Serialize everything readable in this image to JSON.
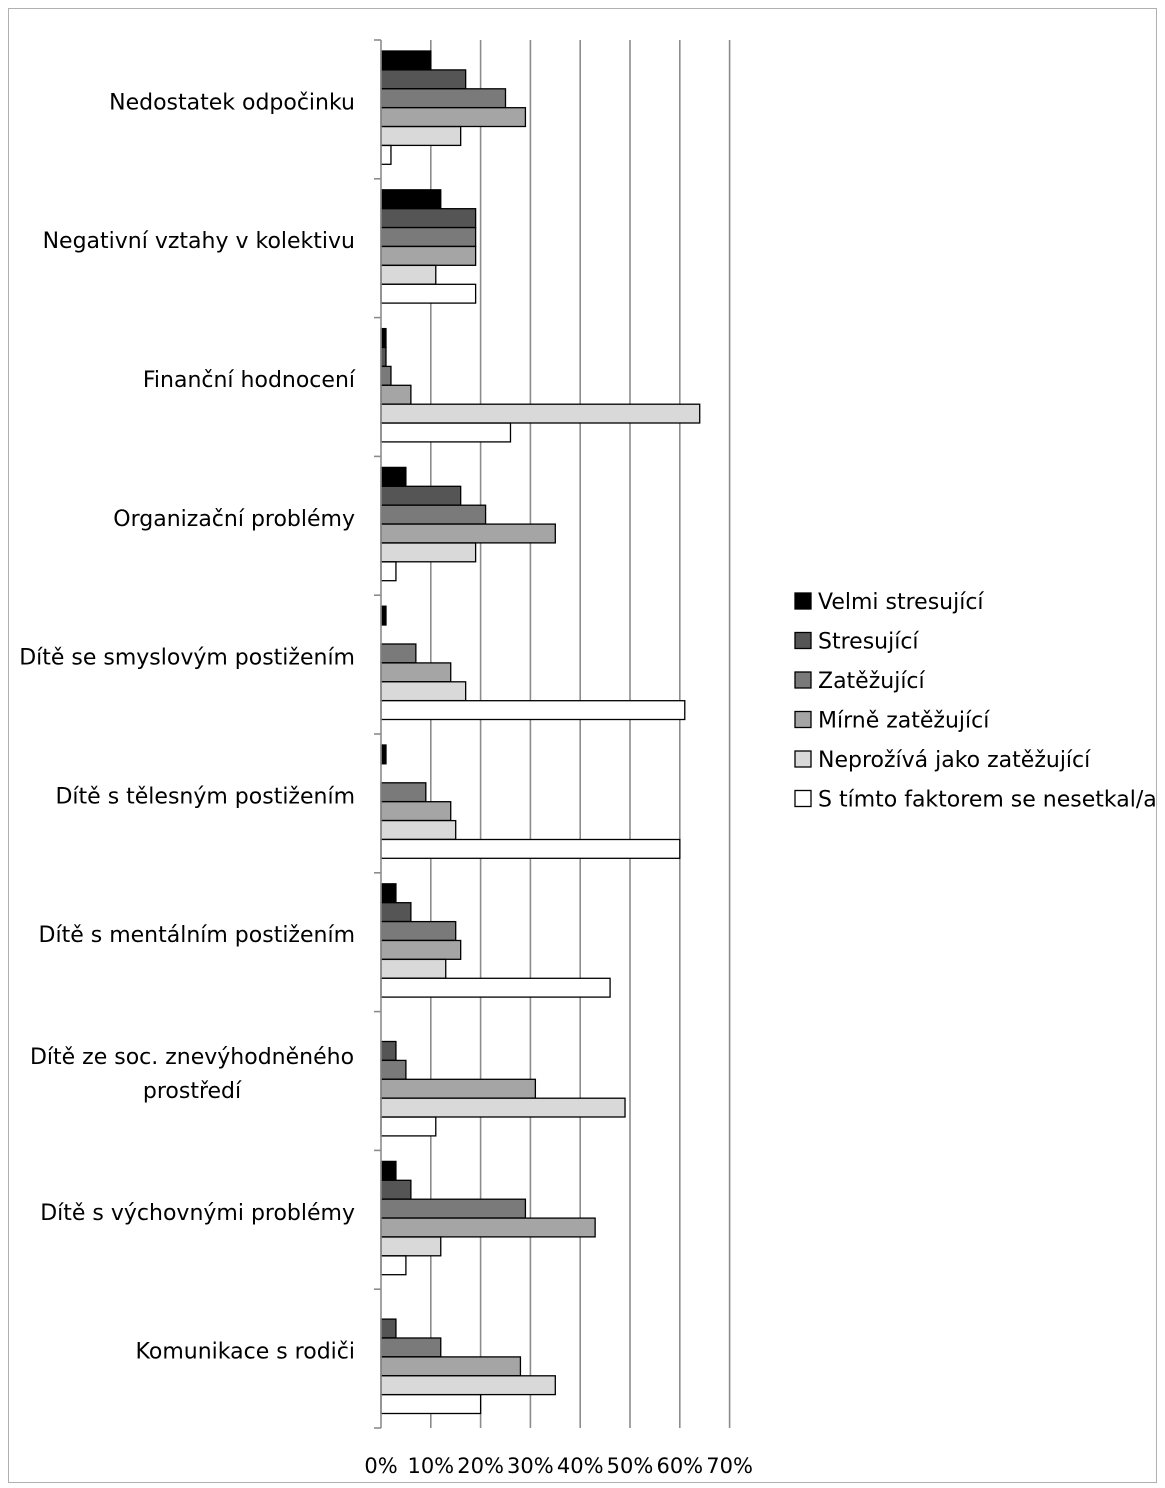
{
  "chart_data": {
    "type": "bar",
    "orientation": "horizontal",
    "title": "",
    "xlabel": "",
    "ylabel": "",
    "xlim": [
      0,
      70
    ],
    "x_ticks": [
      "0%",
      "10%",
      "20%",
      "30%",
      "40%",
      "50%",
      "60%",
      "70%"
    ],
    "grid": "vertical major gridlines",
    "legend_position": "right",
    "categories": [
      [
        "Nedostatek odpočinku"
      ],
      [
        "Negativní vztahy v kolektivu"
      ],
      [
        "Finanční hodnocení"
      ],
      [
        "Organizační problémy"
      ],
      [
        "Dítě se smyslovým postižením"
      ],
      [
        "Dítě s tělesným postižením"
      ],
      [
        "Dítě s mentálním postižením"
      ],
      [
        "Dítě ze soc. znevýhodněného",
        "prostředí"
      ],
      [
        "Dítě s výchovnými problémy"
      ],
      [
        "Komunikace s rodiči"
      ]
    ],
    "series": [
      {
        "name": "Velmi stresující",
        "color": "#000000",
        "values": [
          10,
          12,
          1,
          5,
          1,
          1,
          3,
          0,
          3,
          0
        ]
      },
      {
        "name": "Stresující",
        "color": "#555555",
        "values": [
          17,
          19,
          1,
          16,
          0,
          0,
          6,
          3,
          6,
          3
        ]
      },
      {
        "name": "Zatěžující",
        "color": "#7a7a7a",
        "values": [
          25,
          19,
          2,
          21,
          7,
          9,
          15,
          5,
          29,
          12
        ]
      },
      {
        "name": "Mírně zatěžující",
        "color": "#a5a5a5",
        "values": [
          29,
          19,
          6,
          35,
          14,
          14,
          16,
          31,
          43,
          28
        ]
      },
      {
        "name": "Neprožívá jako zatěžující",
        "color": "#d9d9d9",
        "values": [
          16,
          11,
          64,
          19,
          17,
          15,
          13,
          49,
          12,
          35
        ]
      },
      {
        "name": "S tímto faktorem se nesetkal/a",
        "color": "#ffffff",
        "values": [
          2,
          19,
          26,
          3,
          61,
          60,
          46,
          11,
          5,
          20
        ]
      }
    ]
  }
}
